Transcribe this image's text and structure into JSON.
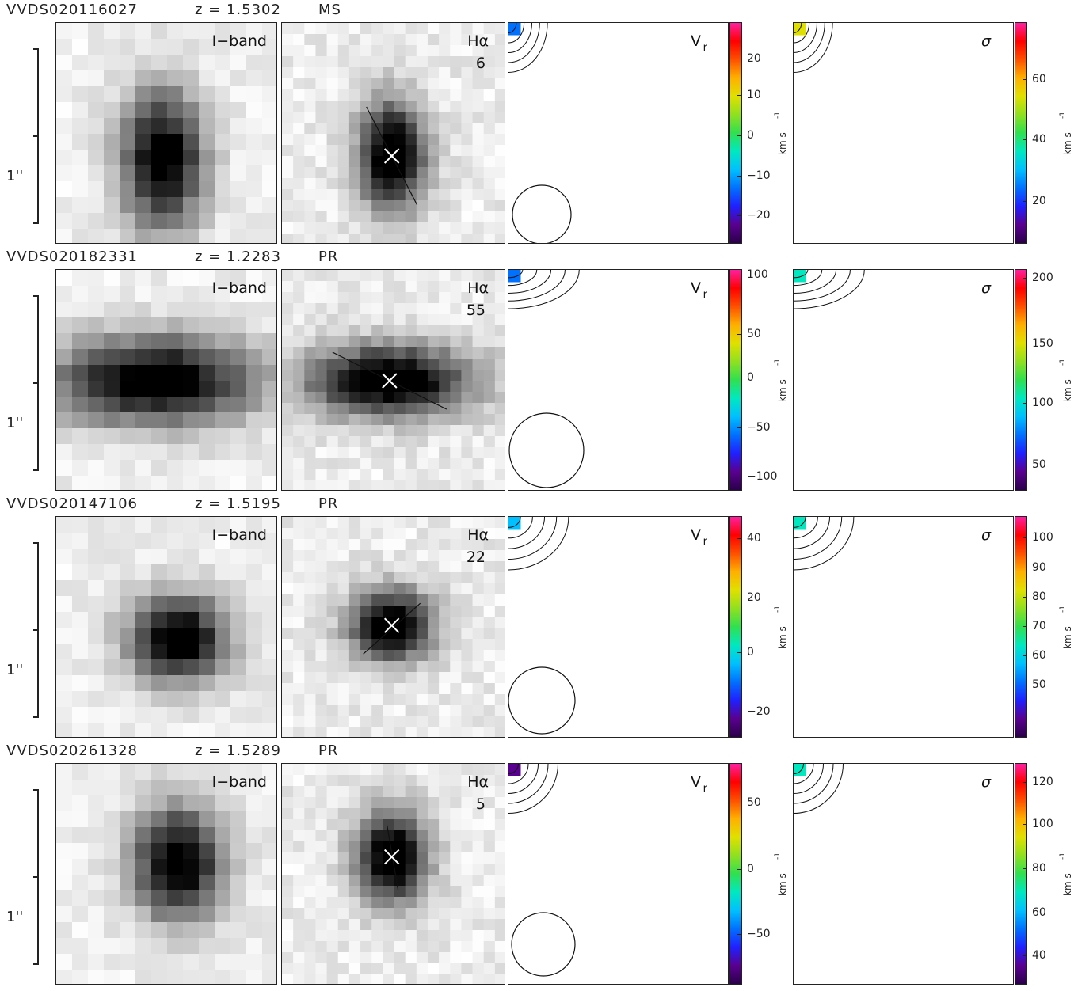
{
  "scale_label": "1''",
  "unit_label": "km s",
  "unit_exp": "-1",
  "rows": [
    {
      "id": "VVDS020116027",
      "z": "z = 1.5302",
      "cls": "MS",
      "iband": "I−band",
      "ha": "Hα",
      "ha_val": "6",
      "vr": "V",
      "vr_sub": "r",
      "sigma": "σ",
      "vr_ticks": [
        "20",
        "10",
        "0",
        "−10",
        "−20"
      ],
      "sig_ticks": [
        "60",
        "40",
        "20"
      ]
    },
    {
      "id": "VVDS020182331",
      "z": "z = 1.2283",
      "cls": "PR",
      "iband": "I−band",
      "ha": "Hα",
      "ha_val": "55",
      "vr": "V",
      "vr_sub": "r",
      "sigma": "σ",
      "vr_ticks": [
        "100",
        "50",
        "0",
        "−50",
        "−100"
      ],
      "sig_ticks": [
        "200",
        "150",
        "100",
        "50"
      ]
    },
    {
      "id": "VVDS020147106",
      "z": "z = 1.5195",
      "cls": "PR",
      "iband": "I−band",
      "ha": "Hα",
      "ha_val": "22",
      "vr": "V",
      "vr_sub": "r",
      "sigma": "σ",
      "vr_ticks": [
        "40",
        "20",
        "0",
        "−20"
      ],
      "sig_ticks": [
        "100",
        "90",
        "80",
        "70",
        "60",
        "50"
      ]
    },
    {
      "id": "VVDS020261328",
      "z": "z = 1.5289",
      "cls": "PR",
      "iband": "I−band",
      "ha": "Hα",
      "ha_val": "5",
      "vr": "V",
      "vr_sub": "r",
      "sigma": "σ",
      "vr_ticks": [
        "50",
        "0",
        "−50"
      ],
      "sig_ticks": [
        "120",
        "100",
        "80",
        "60",
        "40"
      ]
    }
  ]
}
